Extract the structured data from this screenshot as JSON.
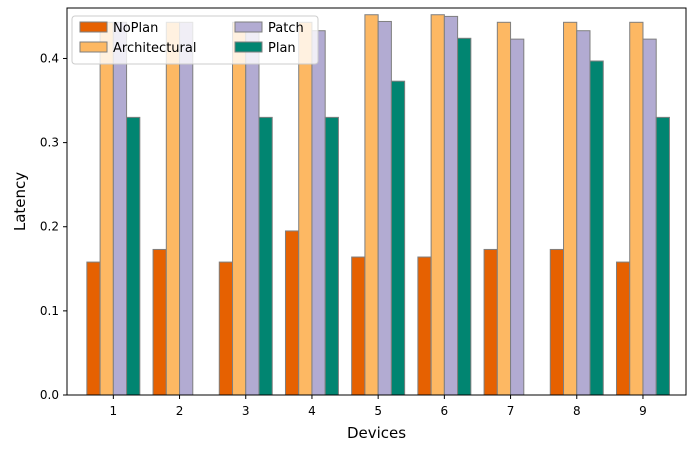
{
  "chart_data": {
    "type": "bar",
    "title": "",
    "xlabel": "Devices",
    "ylabel": "Latency",
    "categories": [
      "1",
      "2",
      "3",
      "4",
      "5",
      "6",
      "7",
      "8",
      "9"
    ],
    "ylim": [
      0,
      0.46
    ],
    "yticks": [
      0.0,
      0.1,
      0.2,
      0.3,
      0.4
    ],
    "ytick_labels": [
      "0.0",
      "0.1",
      "0.2",
      "0.3",
      "0.4"
    ],
    "grid": false,
    "legend_position": "top-left",
    "series": [
      {
        "name": "NoPlan",
        "color": "#e66101",
        "values": [
          0.158,
          0.173,
          0.158,
          0.195,
          0.164,
          0.164,
          0.173,
          0.173,
          0.158
        ]
      },
      {
        "name": "Architectural",
        "color": "#fdb863",
        "values": [
          0.443,
          0.443,
          0.443,
          0.443,
          0.452,
          0.452,
          0.443,
          0.443,
          0.443
        ]
      },
      {
        "name": "Patch",
        "color": "#b2abd2",
        "values": [
          0.443,
          0.443,
          0.433,
          0.433,
          0.444,
          0.45,
          0.423,
          0.433,
          0.423
        ]
      },
      {
        "name": "Plan",
        "color": "#018571",
        "values": [
          0.33,
          0.0,
          0.33,
          0.33,
          0.373,
          0.424,
          0.0,
          0.397,
          0.33
        ]
      }
    ]
  }
}
